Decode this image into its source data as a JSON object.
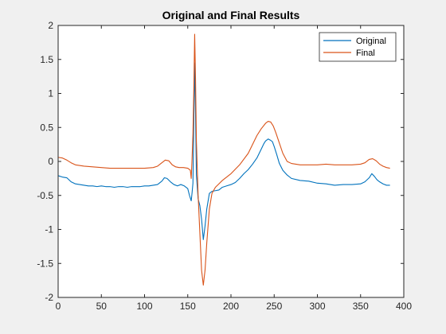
{
  "figure": {
    "background": "#f0f0f0",
    "axes_background": "#ffffff"
  },
  "chart_data": {
    "type": "line",
    "title": "Original and Final Results",
    "xlabel": "",
    "ylabel": "",
    "xlim": [
      0,
      400
    ],
    "ylim": [
      -2,
      2
    ],
    "xticks": [
      0,
      50,
      100,
      150,
      200,
      250,
      300,
      350,
      400
    ],
    "xtick_labels": [
      "0",
      "50",
      "100",
      "150",
      "200",
      "250",
      "300",
      "350",
      "400"
    ],
    "yticks": [
      -2,
      -1.5,
      -1,
      -0.5,
      0,
      0.5,
      1,
      1.5,
      2
    ],
    "ytick_labels": [
      "-2",
      "-1.5",
      "-1",
      "-0.5",
      "0",
      "0.5",
      "1",
      "1.5",
      "2"
    ],
    "grid": false,
    "legend_position": "top-right",
    "series": [
      {
        "name": "Original",
        "color": "#0072bd",
        "x": [
          0,
          5,
          10,
          15,
          20,
          25,
          30,
          35,
          40,
          45,
          50,
          55,
          60,
          65,
          70,
          75,
          80,
          85,
          90,
          95,
          100,
          105,
          110,
          115,
          120,
          123,
          126,
          130,
          134,
          138,
          142,
          146,
          150,
          152,
          154,
          155,
          156,
          157,
          158,
          159,
          160,
          162,
          164,
          166,
          168,
          170,
          172,
          175,
          178,
          182,
          186,
          190,
          195,
          200,
          205,
          210,
          215,
          220,
          225,
          230,
          235,
          238,
          240,
          243,
          246,
          248,
          250,
          253,
          256,
          260,
          265,
          270,
          280,
          290,
          300,
          310,
          320,
          330,
          340,
          350,
          355,
          360,
          363,
          366,
          369,
          372,
          376,
          380,
          384
        ],
        "y": [
          -0.21,
          -0.23,
          -0.24,
          -0.3,
          -0.33,
          -0.34,
          -0.35,
          -0.36,
          -0.36,
          -0.37,
          -0.36,
          -0.37,
          -0.37,
          -0.38,
          -0.37,
          -0.37,
          -0.38,
          -0.37,
          -0.37,
          -0.37,
          -0.36,
          -0.36,
          -0.35,
          -0.34,
          -0.29,
          -0.24,
          -0.25,
          -0.3,
          -0.34,
          -0.36,
          -0.34,
          -0.36,
          -0.4,
          -0.5,
          -0.58,
          -0.46,
          -0.32,
          0.6,
          1.45,
          0.7,
          -0.2,
          -0.55,
          -0.65,
          -0.85,
          -1.15,
          -0.95,
          -0.7,
          -0.47,
          -0.44,
          -0.43,
          -0.42,
          -0.38,
          -0.36,
          -0.34,
          -0.31,
          -0.25,
          -0.18,
          -0.12,
          -0.04,
          0.05,
          0.18,
          0.26,
          0.3,
          0.33,
          0.31,
          0.29,
          0.22,
          0.1,
          -0.03,
          -0.13,
          -0.2,
          -0.25,
          -0.28,
          -0.29,
          -0.32,
          -0.33,
          -0.35,
          -0.34,
          -0.34,
          -0.33,
          -0.3,
          -0.24,
          -0.18,
          -0.22,
          -0.27,
          -0.3,
          -0.33,
          -0.35,
          -0.35
        ]
      },
      {
        "name": "Final",
        "color": "#d95319",
        "x": [
          0,
          5,
          10,
          15,
          20,
          30,
          40,
          50,
          60,
          70,
          80,
          90,
          100,
          110,
          115,
          120,
          124,
          128,
          132,
          136,
          140,
          145,
          150,
          153,
          154,
          155,
          156,
          157,
          158,
          159,
          160,
          162,
          164,
          166,
          168,
          170,
          172,
          175,
          178,
          182,
          186,
          190,
          200,
          210,
          220,
          225,
          230,
          235,
          240,
          243,
          246,
          249,
          252,
          256,
          260,
          265,
          270,
          280,
          290,
          300,
          310,
          320,
          330,
          340,
          350,
          355,
          360,
          364,
          368,
          372,
          376,
          380,
          384
        ],
        "y": [
          0.06,
          0.05,
          0.02,
          -0.02,
          -0.05,
          -0.07,
          -0.08,
          -0.09,
          -0.1,
          -0.1,
          -0.1,
          -0.1,
          -0.1,
          -0.09,
          -0.07,
          -0.02,
          0.02,
          0.01,
          -0.05,
          -0.08,
          -0.09,
          -0.09,
          -0.1,
          -0.13,
          -0.25,
          0.05,
          0.4,
          1.05,
          1.87,
          1.2,
          0.3,
          -0.5,
          -1.05,
          -1.6,
          -1.82,
          -1.6,
          -1.2,
          -0.7,
          -0.47,
          -0.38,
          -0.33,
          -0.28,
          -0.18,
          -0.05,
          0.12,
          0.25,
          0.38,
          0.48,
          0.56,
          0.59,
          0.58,
          0.52,
          0.42,
          0.27,
          0.12,
          0.0,
          -0.03,
          -0.05,
          -0.05,
          -0.05,
          -0.04,
          -0.05,
          -0.05,
          -0.05,
          -0.04,
          -0.02,
          0.03,
          0.04,
          0.01,
          -0.04,
          -0.07,
          -0.09,
          -0.1
        ]
      }
    ]
  }
}
